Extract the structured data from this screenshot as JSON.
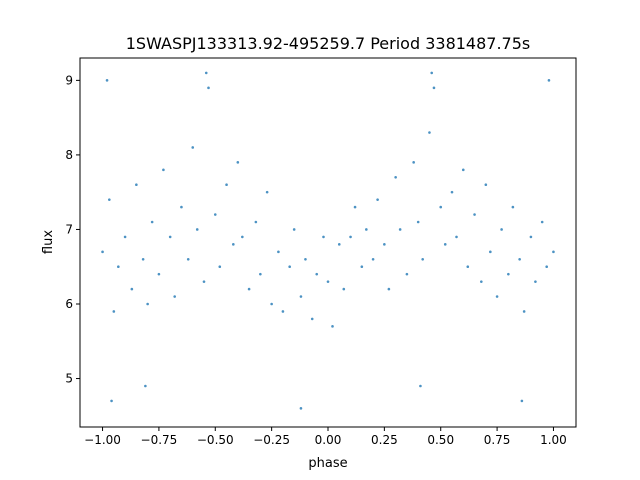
{
  "chart_data": {
    "type": "scatter",
    "title": "1SWASPJ133313.92-495259.7 Period 3381487.75s",
    "xlabel": "phase",
    "ylabel": "flux",
    "xlim": [
      -1.1,
      1.1
    ],
    "ylim": [
      4.35,
      9.3
    ],
    "xticks": [
      -1.0,
      -0.75,
      -0.5,
      -0.25,
      0.0,
      0.25,
      0.5,
      0.75,
      1.0
    ],
    "xtick_labels": [
      "−1.00",
      "−0.75",
      "−0.50",
      "−0.25",
      "0.00",
      "0.25",
      "0.50",
      "0.75",
      "1.00"
    ],
    "yticks": [
      5,
      6,
      7,
      8,
      9
    ],
    "ytick_labels": [
      "5",
      "6",
      "7",
      "8",
      "9"
    ],
    "grid": false,
    "marker_color": "#1f77b4",
    "series": [
      {
        "points": [
          [
            -1.0,
            6.7
          ],
          [
            -0.97,
            7.4
          ],
          [
            -0.95,
            5.9
          ],
          [
            -0.93,
            6.5
          ],
          [
            -0.9,
            6.9
          ],
          [
            -0.87,
            6.2
          ],
          [
            -0.85,
            7.6
          ],
          [
            -0.82,
            6.6
          ],
          [
            -0.8,
            6.0
          ],
          [
            -0.78,
            7.1
          ],
          [
            -0.75,
            6.4
          ],
          [
            -0.73,
            7.8
          ],
          [
            -0.7,
            6.9
          ],
          [
            -0.68,
            6.1
          ],
          [
            -0.65,
            7.3
          ],
          [
            -0.62,
            6.6
          ],
          [
            -0.6,
            8.1
          ],
          [
            -0.58,
            7.0
          ],
          [
            -0.55,
            6.3
          ],
          [
            -0.53,
            8.9
          ],
          [
            -0.5,
            7.2
          ],
          [
            -0.48,
            6.5
          ],
          [
            -0.45,
            7.6
          ],
          [
            -0.42,
            6.8
          ],
          [
            -0.4,
            7.9
          ],
          [
            -0.38,
            6.9
          ],
          [
            -0.35,
            6.2
          ],
          [
            -0.32,
            7.1
          ],
          [
            -0.3,
            6.4
          ],
          [
            -0.27,
            7.5
          ],
          [
            -0.25,
            6.0
          ],
          [
            -0.22,
            6.7
          ],
          [
            -0.2,
            5.9
          ],
          [
            -0.17,
            6.5
          ],
          [
            -0.15,
            7.0
          ],
          [
            -0.12,
            6.1
          ],
          [
            -0.1,
            6.6
          ],
          [
            -0.07,
            5.8
          ],
          [
            -0.05,
            6.4
          ],
          [
            -0.02,
            6.9
          ],
          [
            0.0,
            6.3
          ],
          [
            0.02,
            5.7
          ],
          [
            0.05,
            6.8
          ],
          [
            0.07,
            6.2
          ],
          [
            0.1,
            6.9
          ],
          [
            0.12,
            7.3
          ],
          [
            0.15,
            6.5
          ],
          [
            0.17,
            7.0
          ],
          [
            0.2,
            6.6
          ],
          [
            0.22,
            7.4
          ],
          [
            0.25,
            6.8
          ],
          [
            0.27,
            6.2
          ],
          [
            0.3,
            7.7
          ],
          [
            0.32,
            7.0
          ],
          [
            0.35,
            6.4
          ],
          [
            0.38,
            7.9
          ],
          [
            0.4,
            7.1
          ],
          [
            0.42,
            6.6
          ],
          [
            0.45,
            8.3
          ],
          [
            0.47,
            8.9
          ],
          [
            0.5,
            7.3
          ],
          [
            0.52,
            6.8
          ],
          [
            0.55,
            7.5
          ],
          [
            0.57,
            6.9
          ],
          [
            0.6,
            7.8
          ],
          [
            0.62,
            6.5
          ],
          [
            0.65,
            7.2
          ],
          [
            0.68,
            6.3
          ],
          [
            0.7,
            7.6
          ],
          [
            0.72,
            6.7
          ],
          [
            0.75,
            6.1
          ],
          [
            0.77,
            7.0
          ],
          [
            0.8,
            6.4
          ],
          [
            0.82,
            7.3
          ],
          [
            0.85,
            6.6
          ],
          [
            0.87,
            5.9
          ],
          [
            0.9,
            6.9
          ],
          [
            0.92,
            6.3
          ],
          [
            0.95,
            7.1
          ],
          [
            0.97,
            6.5
          ],
          [
            1.0,
            6.7
          ],
          [
            -0.96,
            4.7
          ],
          [
            -0.81,
            4.9
          ],
          [
            -0.12,
            4.6
          ],
          [
            0.41,
            4.9
          ],
          [
            0.86,
            4.7
          ],
          [
            -0.98,
            9.0
          ],
          [
            -0.54,
            9.1
          ],
          [
            0.46,
            9.1
          ],
          [
            0.98,
            9.0
          ]
        ]
      }
    ]
  }
}
